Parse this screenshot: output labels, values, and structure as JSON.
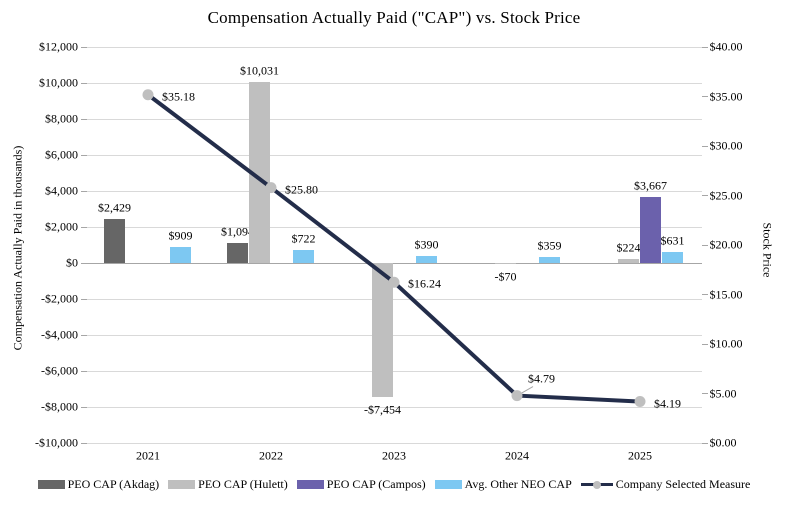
{
  "title": "Compensation Actually Paid (\"CAP\") vs. Stock Price",
  "colors": {
    "akdag": "#666666",
    "hulett": "#BFBFBF",
    "campos": "#6B61AC",
    "neo": "#7DC8F2",
    "line": "#232D4A",
    "marker": "#BFBFBF",
    "gridline": "#D9D9D9",
    "axis_line": "#A6A6A6",
    "text": "#000000",
    "background": "#FFFFFF"
  },
  "chart_data": {
    "type": "bar+line",
    "categories": [
      "2021",
      "2022",
      "2023",
      "2024",
      "2025"
    ],
    "bar_series": [
      {
        "name": "PEO CAP (Akdag)",
        "color_key": "akdag",
        "values": [
          2429,
          1094,
          null,
          null,
          null
        ],
        "labels": [
          "$2,429",
          "$1,094",
          null,
          null,
          null
        ]
      },
      {
        "name": "PEO CAP (Hulett)",
        "color_key": "hulett",
        "values": [
          null,
          10031,
          -7454,
          -70,
          224
        ],
        "labels": [
          null,
          "$10,031",
          "-$7,454",
          "-$70",
          "$224"
        ]
      },
      {
        "name": "PEO CAP (Campos)",
        "color_key": "campos",
        "values": [
          null,
          null,
          null,
          null,
          3667
        ],
        "labels": [
          null,
          null,
          null,
          null,
          "$3,667"
        ]
      },
      {
        "name": "Avg. Other NEO CAP",
        "color_key": "neo",
        "values": [
          909,
          722,
          390,
          359,
          631
        ],
        "labels": [
          "$909",
          "$722",
          "$390",
          "$359",
          "$631"
        ]
      }
    ],
    "line_series": {
      "name": "Company Selected Measure",
      "axis": "right",
      "values": [
        35.18,
        25.8,
        16.24,
        4.79,
        4.19
      ],
      "labels": [
        "$35.18",
        "$25.80",
        "$16.24",
        "$4.79",
        "$4.19"
      ]
    },
    "left_axis": {
      "title": "Compensation Actually Paid in thousands)",
      "min": -10000,
      "max": 12000,
      "tick_values": [
        12000,
        10000,
        8000,
        6000,
        4000,
        2000,
        0,
        -2000,
        -4000,
        -6000,
        -8000,
        -10000
      ],
      "tick_labels": [
        "$12,000",
        "$10,000",
        "$8,000",
        "$6,000",
        "$4,000",
        "$2,000",
        "$0",
        "-$2,000",
        "-$4,000",
        "-$6,000",
        "-$8,000",
        "-$10,000"
      ]
    },
    "right_axis": {
      "title": "Stock Price",
      "min": 0,
      "max": 40,
      "tick_values": [
        40,
        35,
        30,
        25,
        20,
        15,
        10,
        5,
        0
      ],
      "tick_labels": [
        "$40.00",
        "$35.00",
        "$30.00",
        "$25.00",
        "$20.00",
        "$15.00",
        "$10.00",
        "$5.00",
        "$0.00"
      ]
    },
    "grid": true,
    "legend_position": "bottom"
  },
  "legend": [
    {
      "label": "PEO CAP (Akdag)",
      "swatch": "rect",
      "color_key": "akdag"
    },
    {
      "label": "PEO CAP (Hulett)",
      "swatch": "rect",
      "color_key": "hulett"
    },
    {
      "label": "PEO CAP (Campos)",
      "swatch": "rect",
      "color_key": "campos"
    },
    {
      "label": "Avg. Other NEO CAP",
      "swatch": "rect",
      "color_key": "neo"
    },
    {
      "label": "Company Selected Measure",
      "swatch": "line-dot",
      "color_key": "line"
    }
  ]
}
